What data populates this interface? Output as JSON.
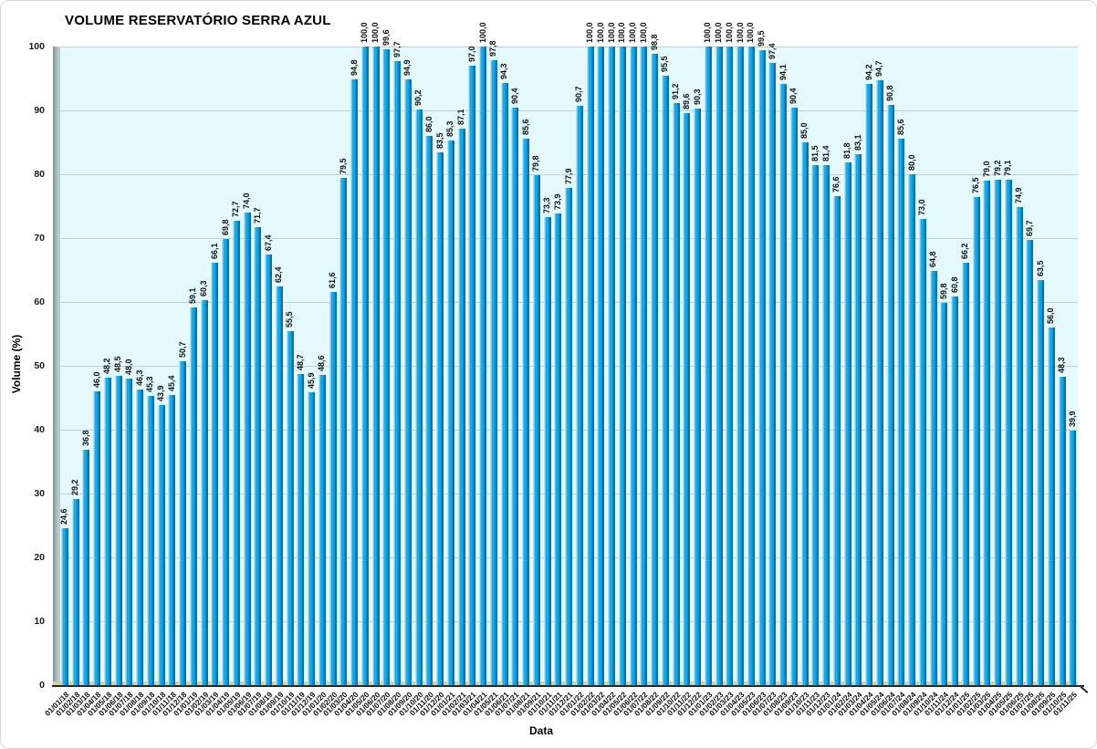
{
  "chart_data": {
    "type": "bar",
    "title": "VOLUME RESERVATÓRIO SERRA AZUL",
    "xlabel": "Data",
    "ylabel": "Volume (%)",
    "ylim": [
      0,
      100
    ],
    "yticks": [
      0,
      10,
      20,
      30,
      40,
      50,
      60,
      70,
      80,
      90,
      100
    ],
    "grid": true,
    "legend_position": "none",
    "decimal_separator": ",",
    "colors": {
      "bar_body": "#1CA9E5",
      "bar_highlight": "#ACE5F9",
      "bar_shadow": "#0B72A8",
      "plot_background": "#E4FAFD",
      "gridline": "#C9CDCD",
      "axis_wall": "#8CA1A7",
      "axis_floor": "#D9CDA3",
      "axis_line": "#262626",
      "text": "#111111"
    },
    "categories": [
      "01/01/18",
      "01/02/18",
      "01/03/18",
      "01/04/18",
      "01/05/18",
      "01/06/18",
      "01/07/18",
      "01/08/18",
      "01/09/18",
      "01/10/18",
      "01/11/18",
      "01/12/18",
      "01/01/19",
      "01/02/19",
      "01/03/19",
      "01/04/19",
      "01/05/19",
      "01/06/19",
      "01/07/19",
      "01/08/19",
      "01/09/19",
      "01/10/19",
      "01/11/19",
      "01/12/19",
      "01/01/20",
      "01/02/20",
      "01/03/20",
      "01/04/20",
      "01/05/20",
      "01/06/20",
      "01/07/20",
      "01/08/20",
      "01/09/20",
      "01/10/20",
      "01/11/20",
      "01/12/20",
      "01/01/21",
      "01/02/21",
      "01/03/21",
      "01/04/21",
      "01/05/21",
      "01/06/21",
      "01/07/21",
      "01/08/21",
      "01/09/21",
      "01/10/21",
      "01/11/21",
      "01/12/21",
      "01/01/22",
      "01/02/22",
      "01/03/22",
      "01/04/22",
      "01/05/22",
      "01/06/22",
      "01/07/22",
      "01/08/22",
      "01/09/22",
      "01/10/22",
      "01/11/22",
      "01/12/22",
      "01/01/23",
      "01/02/23",
      "01/03/23",
      "01/04/23",
      "01/05/23",
      "01/06/23",
      "01/07/23",
      "01/08/23",
      "01/09/23",
      "01/10/23",
      "01/11/23",
      "01/12/23",
      "01/01/24",
      "01/02/24",
      "01/03/24",
      "01/04/24",
      "01/05/24",
      "01/06/24",
      "01/07/24",
      "01/08/24",
      "01/09/24",
      "01/10/24",
      "01/11/24",
      "01/12/24",
      "01/01/25",
      "01/02/25",
      "01/03/25",
      "01/04/25",
      "01/05/25",
      "01/06/25",
      "01/07/25",
      "01/08/25",
      "01/09/25",
      "01/10/25",
      "01/11/25"
    ],
    "values": [
      24.6,
      29.2,
      36.8,
      46.0,
      48.2,
      48.5,
      48.0,
      46.3,
      45.3,
      43.9,
      45.4,
      50.7,
      59.1,
      60.3,
      66.1,
      69.8,
      72.7,
      74.0,
      71.7,
      67.4,
      62.4,
      55.5,
      48.7,
      45.9,
      48.6,
      61.6,
      79.5,
      94.8,
      100.0,
      100.0,
      99.6,
      97.7,
      94.9,
      90.2,
      86.0,
      83.5,
      85.3,
      87.1,
      97.0,
      100.0,
      97.8,
      94.3,
      90.4,
      85.6,
      79.8,
      73.3,
      73.9,
      77.9,
      90.7,
      100.0,
      100.0,
      100.0,
      100.0,
      100.0,
      100.0,
      98.8,
      95.5,
      91.2,
      89.6,
      90.3,
      100.0,
      100.0,
      100.0,
      100.0,
      100.0,
      99.5,
      97.4,
      94.1,
      90.4,
      85.0,
      81.5,
      81.4,
      76.6,
      81.8,
      83.1,
      94.2,
      94.7,
      90.8,
      85.6,
      80.0,
      73.0,
      64.8,
      59.8,
      60.8,
      66.2,
      76.5,
      79.0,
      79.2,
      79.1,
      74.9,
      69.7,
      63.5,
      56.0,
      48.3,
      39.9
    ]
  }
}
